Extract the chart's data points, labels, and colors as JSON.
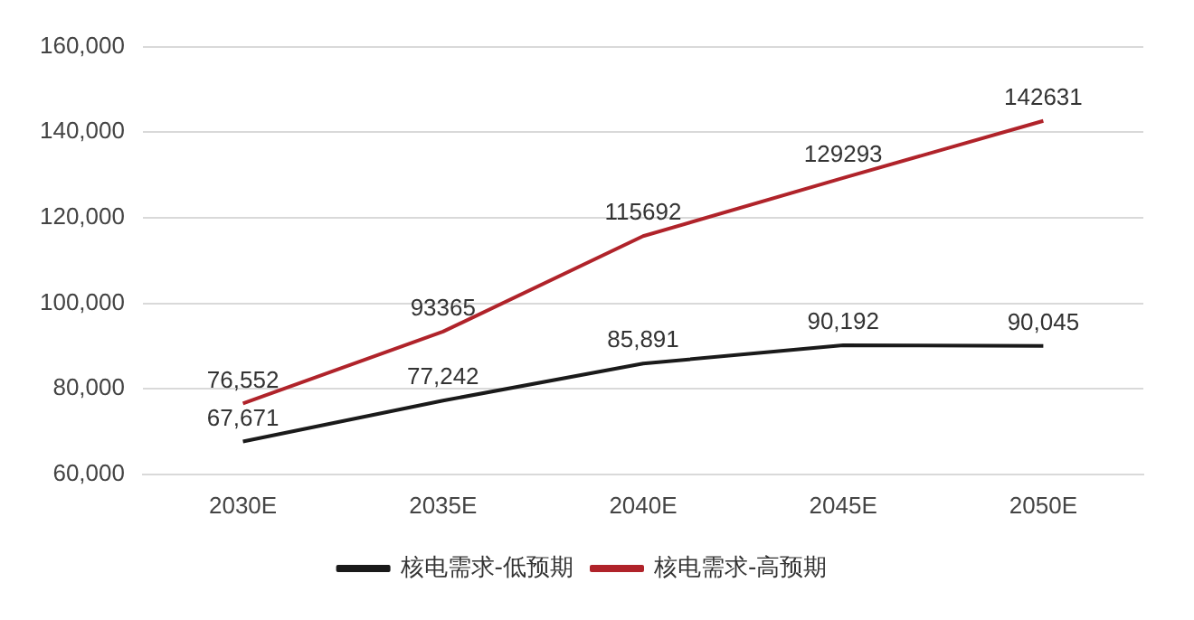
{
  "chart_data": {
    "type": "line",
    "categories": [
      "2030E",
      "2035E",
      "2040E",
      "2045E",
      "2050E"
    ],
    "series": [
      {
        "name": "核电需求-低预期",
        "color": "#1a1a1a",
        "values": [
          67671,
          77242,
          85891,
          90192,
          90045
        ],
        "value_labels": [
          "67,671",
          "77,242",
          "85,891",
          "90,192",
          "90,045"
        ]
      },
      {
        "name": "核电需求-高预期",
        "color": "#b0232a",
        "values": [
          76552,
          93365,
          115692,
          129293,
          142631
        ],
        "value_labels": [
          "76,552",
          "93365",
          "115692",
          "129293",
          "142631"
        ]
      }
    ],
    "ylim": [
      60000,
      160000
    ],
    "yticks": [
      {
        "value": 60000,
        "label": "60,000"
      },
      {
        "value": 80000,
        "label": "80,000"
      },
      {
        "value": 100000,
        "label": "100,000"
      },
      {
        "value": 120000,
        "label": "120,000"
      },
      {
        "value": 140000,
        "label": "140,000"
      },
      {
        "value": 160000,
        "label": "160,000"
      }
    ],
    "grid": "y",
    "legend": "bottom",
    "marker": "none",
    "line_style": "solid"
  }
}
